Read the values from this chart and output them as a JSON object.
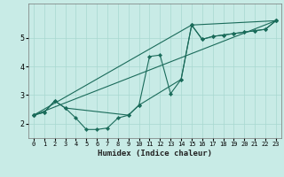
{
  "title": "",
  "xlabel": "Humidex (Indice chaleur)",
  "ylabel": "",
  "background_color": "#c8ebe6",
  "grid_color": "#a8d8d0",
  "line_color": "#1a6b5a",
  "xlim": [
    -0.5,
    23.5
  ],
  "ylim": [
    1.5,
    6.2
  ],
  "yticks": [
    2,
    3,
    4,
    5
  ],
  "xticks": [
    0,
    1,
    2,
    3,
    4,
    5,
    6,
    7,
    8,
    9,
    10,
    11,
    12,
    13,
    14,
    15,
    16,
    17,
    18,
    19,
    20,
    21,
    22,
    23
  ],
  "series": [
    {
      "x": [
        0,
        1,
        2,
        3,
        4,
        5,
        6,
        7,
        8,
        9,
        10,
        11,
        12,
        13,
        14,
        15,
        16,
        17,
        18,
        19,
        20,
        21,
        22,
        23
      ],
      "y": [
        2.3,
        2.4,
        2.8,
        2.55,
        2.2,
        1.8,
        1.8,
        1.85,
        2.2,
        2.3,
        2.65,
        4.35,
        4.4,
        3.05,
        3.55,
        5.45,
        4.95,
        5.05,
        5.1,
        5.15,
        5.2,
        5.25,
        5.3,
        5.6
      ]
    },
    {
      "x": [
        0,
        1,
        2,
        3,
        9,
        10,
        14,
        15,
        16,
        17,
        18,
        19,
        20,
        21,
        22,
        23
      ],
      "y": [
        2.3,
        2.4,
        2.8,
        2.55,
        2.3,
        2.65,
        3.55,
        5.45,
        4.95,
        5.05,
        5.1,
        5.15,
        5.2,
        5.25,
        5.3,
        5.6
      ]
    },
    {
      "x": [
        0,
        23
      ],
      "y": [
        2.3,
        5.6
      ]
    },
    {
      "x": [
        0,
        15,
        23
      ],
      "y": [
        2.3,
        5.45,
        5.6
      ]
    }
  ]
}
